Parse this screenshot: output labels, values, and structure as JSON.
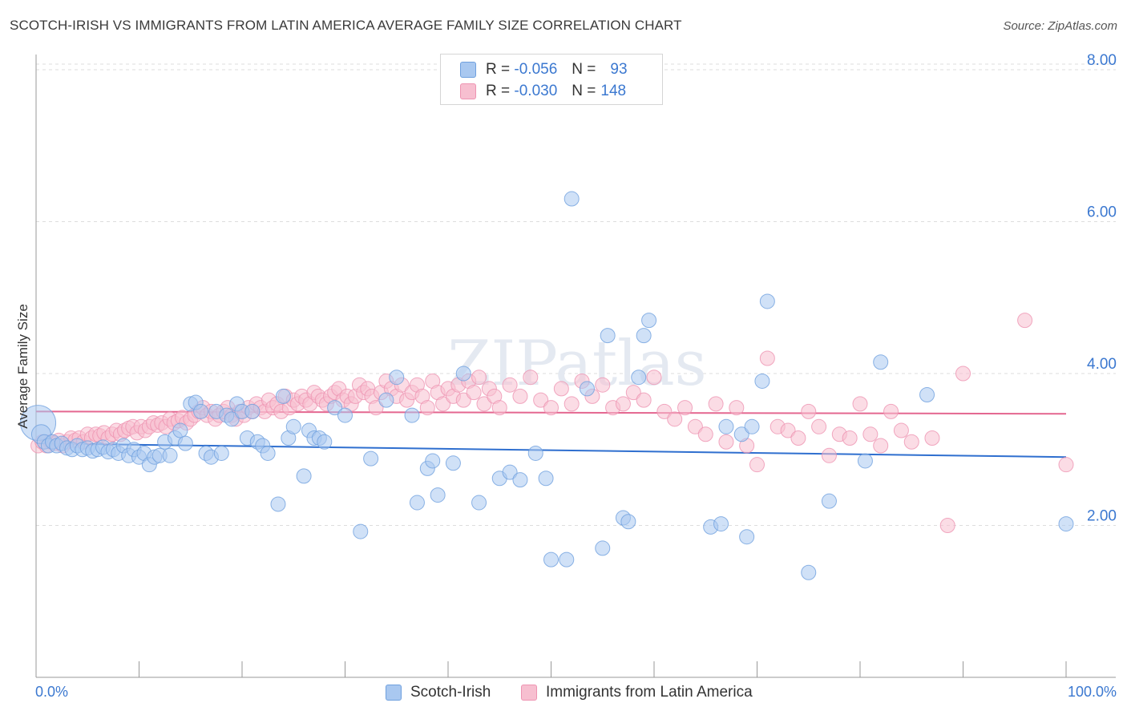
{
  "header": {
    "title": "SCOTCH-IRISH VS IMMIGRANTS FROM LATIN AMERICA AVERAGE FAMILY SIZE CORRELATION CHART",
    "source": "Source: ZipAtlas.com"
  },
  "watermark": "ZIPatlas",
  "legend": {
    "rows": [
      {
        "r_label": "R =",
        "r_value": "-0.056",
        "n_label": "N =",
        "n_value": "93"
      },
      {
        "r_label": "R =",
        "r_value": "-0.030",
        "n_label": "N =",
        "n_value": "148"
      }
    ]
  },
  "colors": {
    "blue_fill": "#a9c8f0",
    "blue_stroke": "#6fa0de",
    "blue_line": "#2f6fcf",
    "pink_fill": "#f7bfd0",
    "pink_stroke": "#ee94b2",
    "pink_line": "#e46790",
    "tick_text": "#3b78d0",
    "grid": "#dddddd"
  },
  "chart_data": {
    "type": "scatter",
    "ylabel": "Average Family Size",
    "xlim": [
      0,
      100
    ],
    "ylim": [
      0,
      8.2
    ],
    "y_ticks": [
      {
        "v": 2,
        "label": "2.00"
      },
      {
        "v": 4,
        "label": "4.00"
      },
      {
        "v": 6,
        "label": "6.00"
      },
      {
        "v": 8,
        "label": "8.00"
      }
    ],
    "x_ticks": [
      {
        "v": 0,
        "label": "0.0%"
      },
      {
        "v": 100,
        "label": "100.0%"
      }
    ],
    "grid": true,
    "legend_position": "top-center",
    "series": [
      {
        "name": "Scotch-Irish",
        "color": "#a9c8f0",
        "trend": {
          "x0": 0,
          "y0": 3.08,
          "x1": 100,
          "y1": 2.9
        },
        "points": [
          [
            0.2,
            3.35
          ],
          [
            0.5,
            3.2
          ],
          [
            0.8,
            3.1
          ],
          [
            1.2,
            3.05
          ],
          [
            1.6,
            3.1
          ],
          [
            2.0,
            3.05
          ],
          [
            2.5,
            3.08
          ],
          [
            3.0,
            3.02
          ],
          [
            3.5,
            3.0
          ],
          [
            4.0,
            3.05
          ],
          [
            4.5,
            3.0
          ],
          [
            5.0,
            3.02
          ],
          [
            5.5,
            2.98
          ],
          [
            6.0,
            3.0
          ],
          [
            6.5,
            3.03
          ],
          [
            7.0,
            2.97
          ],
          [
            7.5,
            3.0
          ],
          [
            8.0,
            2.95
          ],
          [
            8.5,
            3.05
          ],
          [
            9.0,
            2.92
          ],
          [
            9.5,
            3.0
          ],
          [
            10.0,
            2.9
          ],
          [
            10.5,
            2.95
          ],
          [
            11.0,
            2.8
          ],
          [
            11.5,
            2.9
          ],
          [
            12.0,
            2.92
          ],
          [
            12.5,
            3.1
          ],
          [
            13.0,
            2.92
          ],
          [
            13.5,
            3.15
          ],
          [
            14.0,
            3.25
          ],
          [
            14.5,
            3.08
          ],
          [
            15.0,
            3.6
          ],
          [
            15.5,
            3.62
          ],
          [
            16.0,
            3.5
          ],
          [
            16.5,
            2.95
          ],
          [
            17.0,
            2.9
          ],
          [
            17.5,
            3.5
          ],
          [
            18.0,
            2.95
          ],
          [
            18.5,
            3.45
          ],
          [
            19.0,
            3.4
          ],
          [
            19.5,
            3.6
          ],
          [
            20.0,
            3.5
          ],
          [
            20.5,
            3.15
          ],
          [
            21.0,
            3.5
          ],
          [
            21.5,
            3.1
          ],
          [
            22.0,
            3.05
          ],
          [
            22.5,
            2.95
          ],
          [
            23.5,
            2.28
          ],
          [
            24.0,
            3.7
          ],
          [
            24.5,
            3.15
          ],
          [
            25.0,
            3.3
          ],
          [
            26.0,
            2.65
          ],
          [
            26.5,
            3.25
          ],
          [
            27.0,
            3.15
          ],
          [
            27.5,
            3.15
          ],
          [
            28.0,
            3.1
          ],
          [
            29.0,
            3.55
          ],
          [
            30.0,
            3.45
          ],
          [
            31.5,
            1.92
          ],
          [
            32.5,
            2.88
          ],
          [
            34.0,
            3.65
          ],
          [
            35.0,
            3.95
          ],
          [
            36.5,
            3.45
          ],
          [
            37.0,
            2.3
          ],
          [
            38.0,
            2.75
          ],
          [
            38.5,
            2.85
          ],
          [
            39.0,
            2.4
          ],
          [
            40.5,
            2.82
          ],
          [
            41.5,
            4.0
          ],
          [
            43.0,
            2.3
          ],
          [
            45.0,
            2.62
          ],
          [
            46.0,
            2.7
          ],
          [
            47.0,
            2.6
          ],
          [
            48.5,
            2.95
          ],
          [
            49.5,
            2.62
          ],
          [
            50.0,
            1.55
          ],
          [
            51.5,
            1.55
          ],
          [
            52.0,
            6.3
          ],
          [
            53.5,
            3.8
          ],
          [
            55.0,
            1.7
          ],
          [
            55.5,
            4.5
          ],
          [
            57.0,
            2.1
          ],
          [
            57.5,
            2.05
          ],
          [
            58.5,
            3.95
          ],
          [
            59.0,
            4.5
          ],
          [
            59.5,
            4.7
          ],
          [
            65.5,
            1.98
          ],
          [
            66.5,
            2.02
          ],
          [
            67.0,
            3.3
          ],
          [
            68.5,
            3.2
          ],
          [
            69.0,
            1.85
          ],
          [
            69.5,
            3.3
          ],
          [
            70.5,
            3.9
          ],
          [
            71.0,
            4.95
          ],
          [
            75.0,
            1.38
          ],
          [
            77.0,
            2.32
          ],
          [
            80.5,
            2.85
          ],
          [
            82.0,
            4.15
          ],
          [
            86.5,
            3.72
          ],
          [
            100.0,
            2.02
          ]
        ]
      },
      {
        "name": "Immigrants from Latin America",
        "color": "#f7bfd0",
        "trend": {
          "x0": 0,
          "y0": 3.5,
          "x1": 100,
          "y1": 3.47
        },
        "points": [
          [
            0.2,
            3.05
          ],
          [
            0.6,
            3.1
          ],
          [
            1.0,
            3.05
          ],
          [
            1.4,
            3.1
          ],
          [
            1.8,
            3.08
          ],
          [
            2.2,
            3.12
          ],
          [
            2.6,
            3.05
          ],
          [
            3.0,
            3.1
          ],
          [
            3.4,
            3.15
          ],
          [
            3.8,
            3.12
          ],
          [
            4.2,
            3.15
          ],
          [
            4.6,
            3.1
          ],
          [
            5.0,
            3.2
          ],
          [
            5.4,
            3.15
          ],
          [
            5.8,
            3.2
          ],
          [
            6.2,
            3.18
          ],
          [
            6.6,
            3.22
          ],
          [
            7.0,
            3.15
          ],
          [
            7.4,
            3.2
          ],
          [
            7.8,
            3.25
          ],
          [
            8.2,
            3.2
          ],
          [
            8.6,
            3.25
          ],
          [
            9.0,
            3.28
          ],
          [
            9.4,
            3.3
          ],
          [
            9.8,
            3.22
          ],
          [
            10.2,
            3.3
          ],
          [
            10.6,
            3.25
          ],
          [
            11.0,
            3.3
          ],
          [
            11.4,
            3.35
          ],
          [
            11.8,
            3.32
          ],
          [
            12.2,
            3.35
          ],
          [
            12.6,
            3.3
          ],
          [
            13.0,
            3.4
          ],
          [
            13.4,
            3.35
          ],
          [
            13.8,
            3.38
          ],
          [
            14.2,
            3.42
          ],
          [
            14.6,
            3.35
          ],
          [
            15.0,
            3.4
          ],
          [
            15.4,
            3.45
          ],
          [
            15.8,
            3.5
          ],
          [
            16.2,
            3.55
          ],
          [
            16.6,
            3.45
          ],
          [
            17.0,
            3.5
          ],
          [
            17.4,
            3.4
          ],
          [
            17.8,
            3.45
          ],
          [
            18.2,
            3.5
          ],
          [
            18.6,
            3.55
          ],
          [
            19.0,
            3.45
          ],
          [
            19.4,
            3.4
          ],
          [
            19.8,
            3.5
          ],
          [
            20.2,
            3.45
          ],
          [
            20.6,
            3.55
          ],
          [
            21.0,
            3.5
          ],
          [
            21.4,
            3.6
          ],
          [
            21.8,
            3.55
          ],
          [
            22.2,
            3.5
          ],
          [
            22.6,
            3.65
          ],
          [
            23.0,
            3.55
          ],
          [
            23.4,
            3.6
          ],
          [
            23.8,
            3.5
          ],
          [
            24.2,
            3.7
          ],
          [
            24.6,
            3.55
          ],
          [
            25.0,
            3.65
          ],
          [
            25.4,
            3.6
          ],
          [
            25.8,
            3.7
          ],
          [
            26.2,
            3.65
          ],
          [
            26.6,
            3.6
          ],
          [
            27.0,
            3.75
          ],
          [
            27.4,
            3.7
          ],
          [
            27.8,
            3.65
          ],
          [
            28.2,
            3.6
          ],
          [
            28.6,
            3.7
          ],
          [
            29.0,
            3.75
          ],
          [
            29.4,
            3.8
          ],
          [
            29.8,
            3.65
          ],
          [
            30.2,
            3.7
          ],
          [
            30.6,
            3.6
          ],
          [
            31.0,
            3.7
          ],
          [
            31.4,
            3.85
          ],
          [
            31.8,
            3.75
          ],
          [
            32.2,
            3.8
          ],
          [
            32.6,
            3.7
          ],
          [
            33.0,
            3.55
          ],
          [
            33.5,
            3.75
          ],
          [
            34.0,
            3.9
          ],
          [
            34.5,
            3.8
          ],
          [
            35.0,
            3.7
          ],
          [
            35.5,
            3.85
          ],
          [
            36.0,
            3.65
          ],
          [
            36.5,
            3.75
          ],
          [
            37.0,
            3.85
          ],
          [
            37.5,
            3.7
          ],
          [
            38.0,
            3.55
          ],
          [
            38.5,
            3.9
          ],
          [
            39.0,
            3.75
          ],
          [
            39.5,
            3.6
          ],
          [
            40.0,
            3.8
          ],
          [
            40.5,
            3.7
          ],
          [
            41.0,
            3.85
          ],
          [
            41.5,
            3.65
          ],
          [
            42.0,
            3.9
          ],
          [
            42.5,
            3.75
          ],
          [
            43.0,
            3.95
          ],
          [
            43.5,
            3.6
          ],
          [
            44.0,
            3.8
          ],
          [
            44.5,
            3.7
          ],
          [
            45.0,
            3.55
          ],
          [
            46.0,
            3.85
          ],
          [
            47.0,
            3.7
          ],
          [
            48.0,
            3.95
          ],
          [
            49.0,
            3.65
          ],
          [
            50.0,
            3.55
          ],
          [
            51.0,
            3.8
          ],
          [
            52.0,
            3.6
          ],
          [
            53.0,
            3.9
          ],
          [
            54.0,
            3.7
          ],
          [
            55.0,
            3.85
          ],
          [
            56.0,
            3.55
          ],
          [
            57.0,
            3.6
          ],
          [
            58.0,
            3.75
          ],
          [
            59.0,
            3.65
          ],
          [
            60.0,
            3.95
          ],
          [
            61.0,
            3.5
          ],
          [
            62.0,
            3.4
          ],
          [
            63.0,
            3.55
          ],
          [
            64.0,
            3.3
          ],
          [
            65.0,
            3.2
          ],
          [
            66.0,
            3.6
          ],
          [
            67.0,
            3.1
          ],
          [
            68.0,
            3.55
          ],
          [
            69.0,
            3.05
          ],
          [
            70.0,
            2.8
          ],
          [
            71.0,
            4.2
          ],
          [
            72.0,
            3.3
          ],
          [
            73.0,
            3.25
          ],
          [
            74.0,
            3.15
          ],
          [
            75.0,
            3.5
          ],
          [
            76.0,
            3.3
          ],
          [
            77.0,
            2.92
          ],
          [
            78.0,
            3.2
          ],
          [
            79.0,
            3.15
          ],
          [
            80.0,
            3.6
          ],
          [
            81.0,
            3.2
          ],
          [
            82.0,
            3.05
          ],
          [
            83.0,
            3.5
          ],
          [
            84.0,
            3.25
          ],
          [
            85.0,
            3.1
          ],
          [
            87.0,
            3.15
          ],
          [
            88.5,
            2.0
          ],
          [
            90.0,
            4.0
          ],
          [
            96.0,
            4.7
          ],
          [
            100.0,
            2.8
          ]
        ]
      }
    ]
  }
}
